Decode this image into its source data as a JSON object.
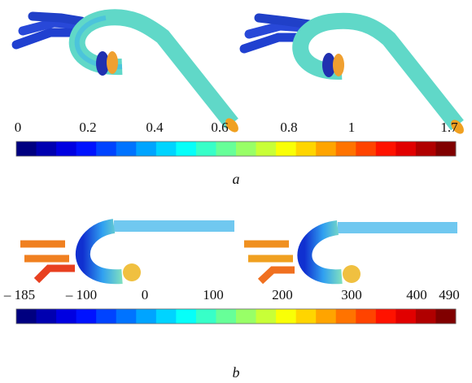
{
  "panels": [
    {
      "label": "a",
      "colorbar_ticks": [
        "0",
        "0.2",
        "0.4",
        "0.6",
        "0.8",
        "1",
        "1.7"
      ]
    },
    {
      "label": "b",
      "colorbar_ticks": [
        "– 185",
        "– 100",
        "0",
        "100",
        "200",
        "300",
        "400",
        "490"
      ]
    }
  ]
}
